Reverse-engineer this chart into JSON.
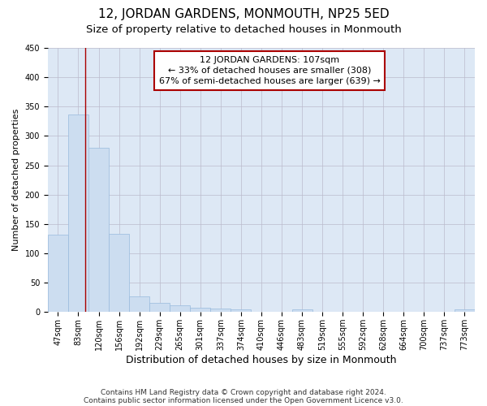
{
  "title": "12, JORDAN GARDENS, MONMOUTH, NP25 5ED",
  "subtitle": "Size of property relative to detached houses in Monmouth",
  "xlabel": "Distribution of detached houses by size in Monmouth",
  "ylabel": "Number of detached properties",
  "bar_color": "#ccddf0",
  "bar_edgecolor": "#99bbdd",
  "grid_color": "#bbbbcc",
  "background_color": "#dde8f5",
  "categories": [
    "47sqm",
    "83sqm",
    "120sqm",
    "156sqm",
    "192sqm",
    "229sqm",
    "265sqm",
    "301sqm",
    "337sqm",
    "374sqm",
    "410sqm",
    "446sqm",
    "483sqm",
    "519sqm",
    "555sqm",
    "592sqm",
    "628sqm",
    "664sqm",
    "700sqm",
    "737sqm",
    "773sqm"
  ],
  "values": [
    132,
    336,
    280,
    133,
    27,
    15,
    11,
    7,
    6,
    4,
    0,
    0,
    4,
    0,
    0,
    0,
    0,
    0,
    0,
    0,
    4
  ],
  "ylim": [
    0,
    450
  ],
  "yticks": [
    0,
    50,
    100,
    150,
    200,
    250,
    300,
    350,
    400,
    450
  ],
  "red_line_x": 1.33,
  "annotation_text": "12 JORDAN GARDENS: 107sqm\n← 33% of detached houses are smaller (308)\n67% of semi-detached houses are larger (639) →",
  "footnote1": "Contains HM Land Registry data © Crown copyright and database right 2024.",
  "footnote2": "Contains public sector information licensed under the Open Government Licence v3.0.",
  "title_fontsize": 11,
  "subtitle_fontsize": 9.5,
  "annotation_fontsize": 8,
  "xlabel_fontsize": 9,
  "ylabel_fontsize": 8,
  "tick_fontsize": 7,
  "footnote_fontsize": 6.5,
  "red_line_color": "#aa0000",
  "annotation_box_edgecolor": "#aa0000"
}
